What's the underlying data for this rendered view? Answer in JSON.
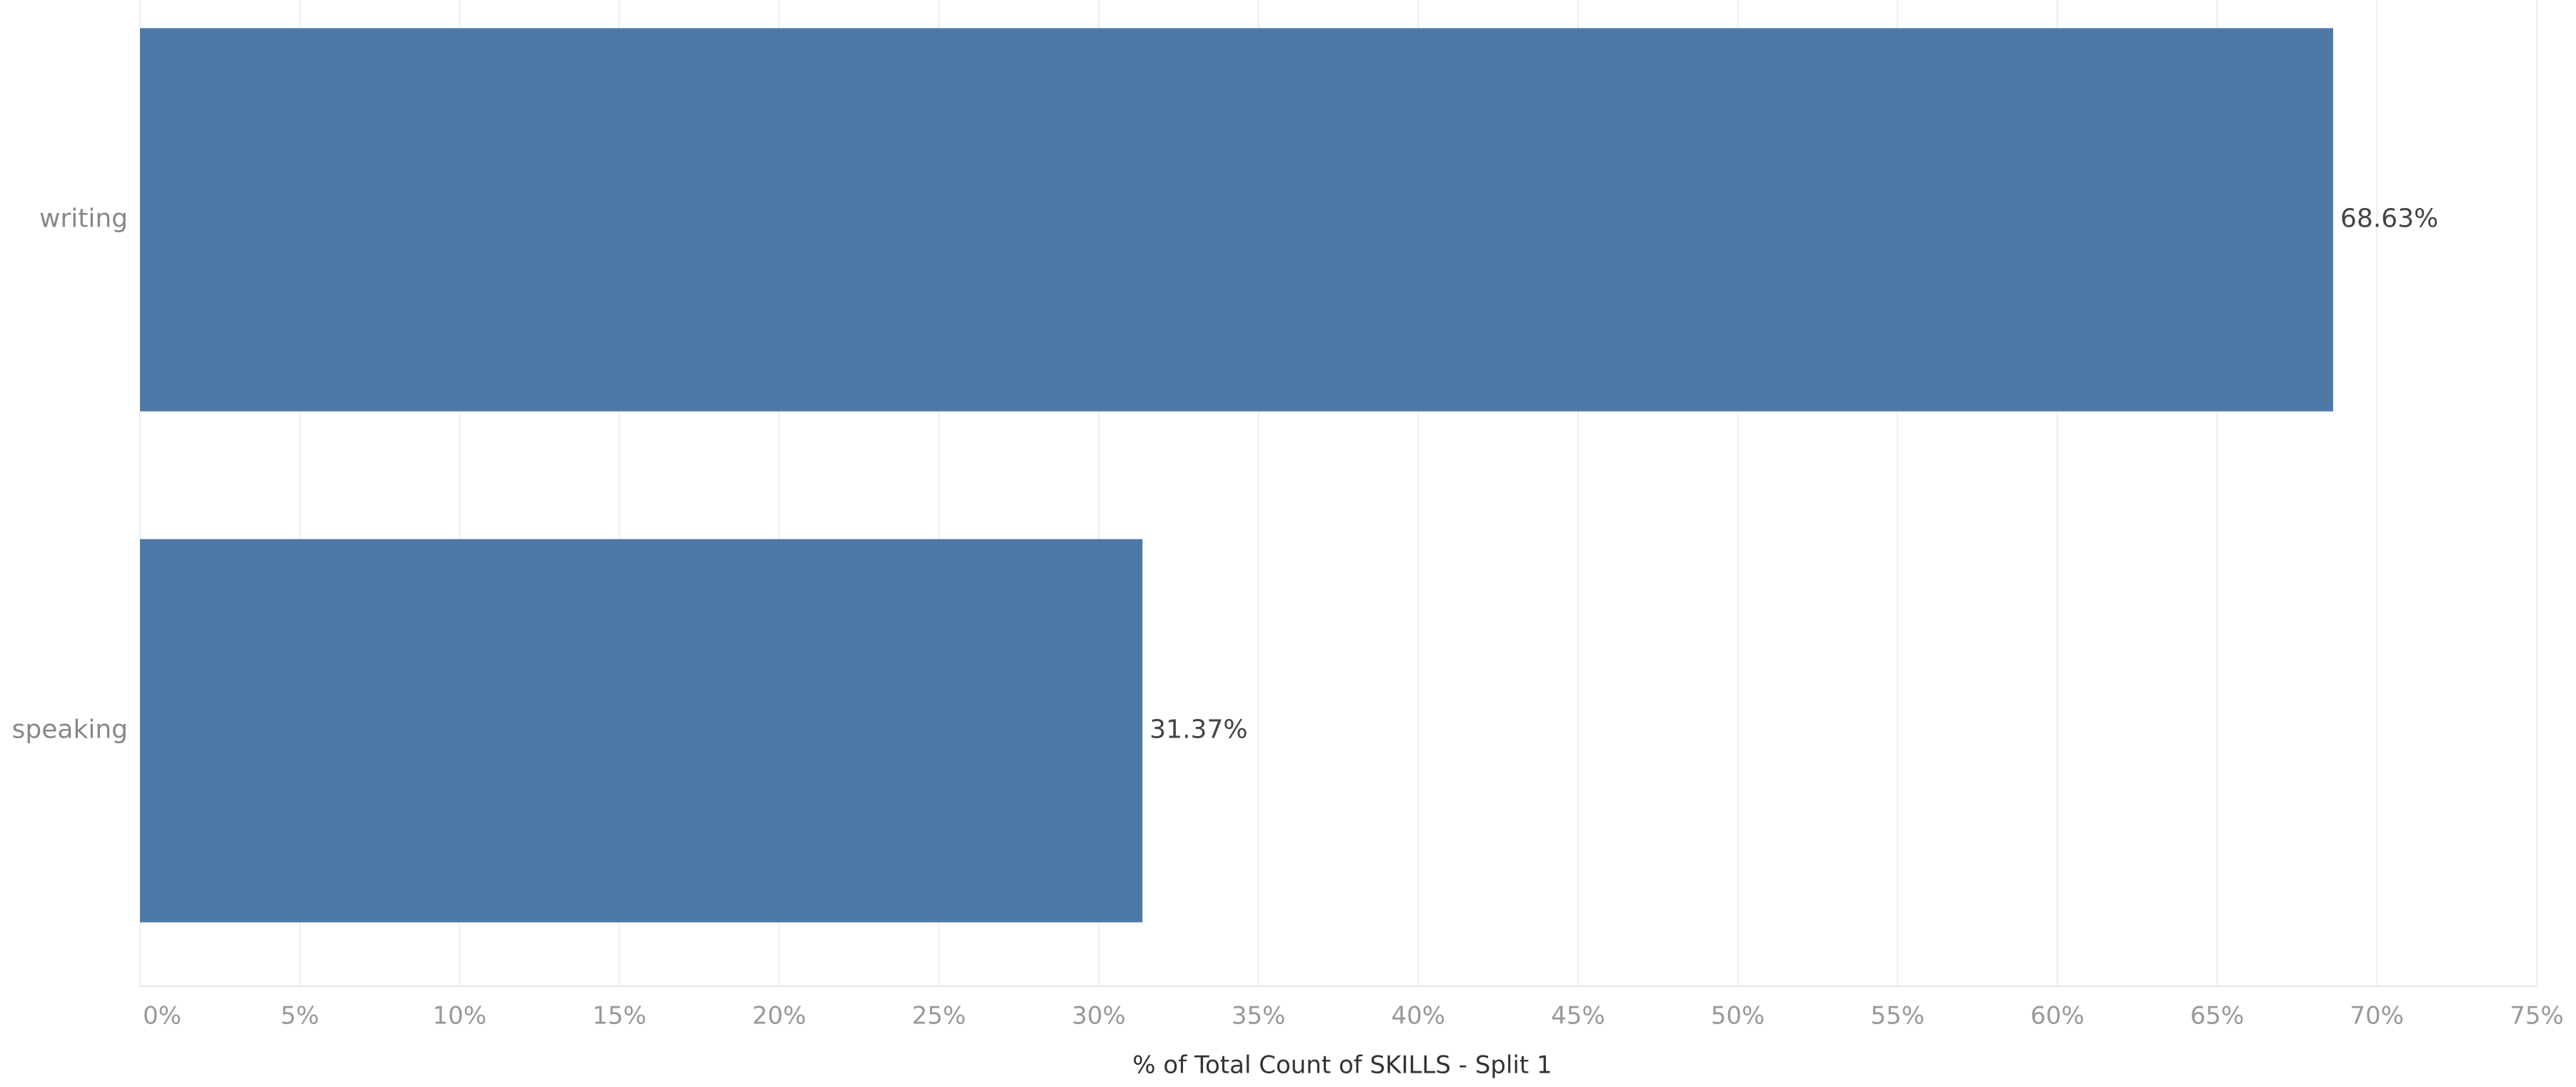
{
  "chart_data": {
    "type": "bar",
    "orientation": "horizontal",
    "categories": [
      "writing",
      "speaking"
    ],
    "values": [
      68.63,
      31.37
    ],
    "value_labels": [
      "68.63%",
      "31.37%"
    ],
    "color": "#4e79a7",
    "xlabel": "% of Total Count of SKILLS - Split 1",
    "xlim": [
      0,
      75
    ],
    "xticks": [
      {
        "value": 0,
        "label": "0%"
      },
      {
        "value": 5,
        "label": "5%"
      },
      {
        "value": 10,
        "label": "10%"
      },
      {
        "value": 15,
        "label": "15%"
      },
      {
        "value": 20,
        "label": "20%"
      },
      {
        "value": 25,
        "label": "25%"
      },
      {
        "value": 30,
        "label": "30%"
      },
      {
        "value": 35,
        "label": "35%"
      },
      {
        "value": 40,
        "label": "40%"
      },
      {
        "value": 45,
        "label": "45%"
      },
      {
        "value": 50,
        "label": "50%"
      },
      {
        "value": 55,
        "label": "55%"
      },
      {
        "value": 60,
        "label": "60%"
      },
      {
        "value": 65,
        "label": "65%"
      },
      {
        "value": 70,
        "label": "70%"
      },
      {
        "value": 75,
        "label": "75%"
      }
    ],
    "grid": true
  }
}
